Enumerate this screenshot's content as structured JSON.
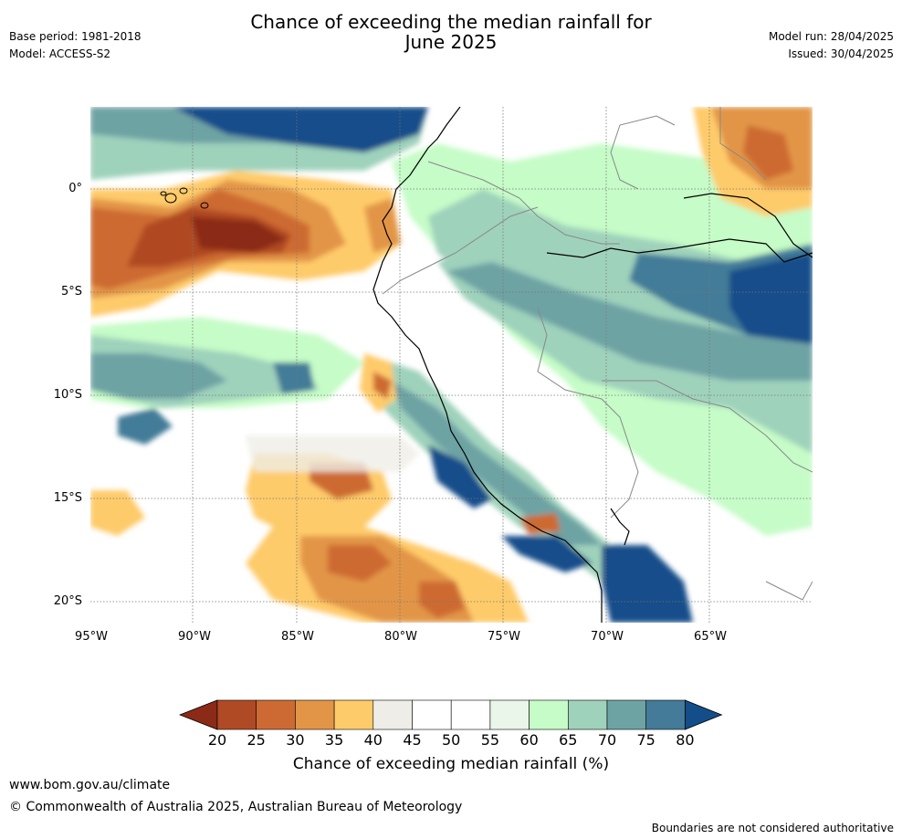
{
  "title": {
    "line1": "Chance of exceeding the median rainfall for",
    "line2": "June 2025"
  },
  "meta": {
    "base_period": "Base period: 1981-2018",
    "model": "Model: ACCESS-S2",
    "model_run": "Model run: 28/04/2025",
    "issued": "Issued: 30/04/2025"
  },
  "map": {
    "lat_ticks": [
      "0°",
      "5°S",
      "10°S",
      "15°S",
      "20°S"
    ],
    "lon_ticks": [
      "95°W",
      "90°W",
      "85°W",
      "80°W",
      "75°W",
      "70°W",
      "65°W"
    ],
    "lon_range": [
      -95,
      -60
    ],
    "lat_range": [
      -21,
      4
    ]
  },
  "colorbar": {
    "ticks": [
      "20",
      "25",
      "30",
      "35",
      "40",
      "45",
      "50",
      "55",
      "60",
      "65",
      "70",
      "75",
      "80"
    ],
    "colors": [
      "#8b2a16",
      "#b04a24",
      "#cd6a33",
      "#e29547",
      "#fecb6a",
      "#efede7",
      "#ffffff",
      "#ffffff",
      "#e9f6e9",
      "#c6fcc7",
      "#9fd2bb",
      "#6ea3a4",
      "#437b98",
      "#134e8a"
    ],
    "label": "Chance of exceeding median rainfall (%)"
  },
  "footer": {
    "url": "www.bom.gov.au/climate",
    "copyright": "© Commonwealth of Australia 2025, Australian Bureau of Meteorology",
    "disclaimer": "Boundaries are not considered authoritative"
  }
}
